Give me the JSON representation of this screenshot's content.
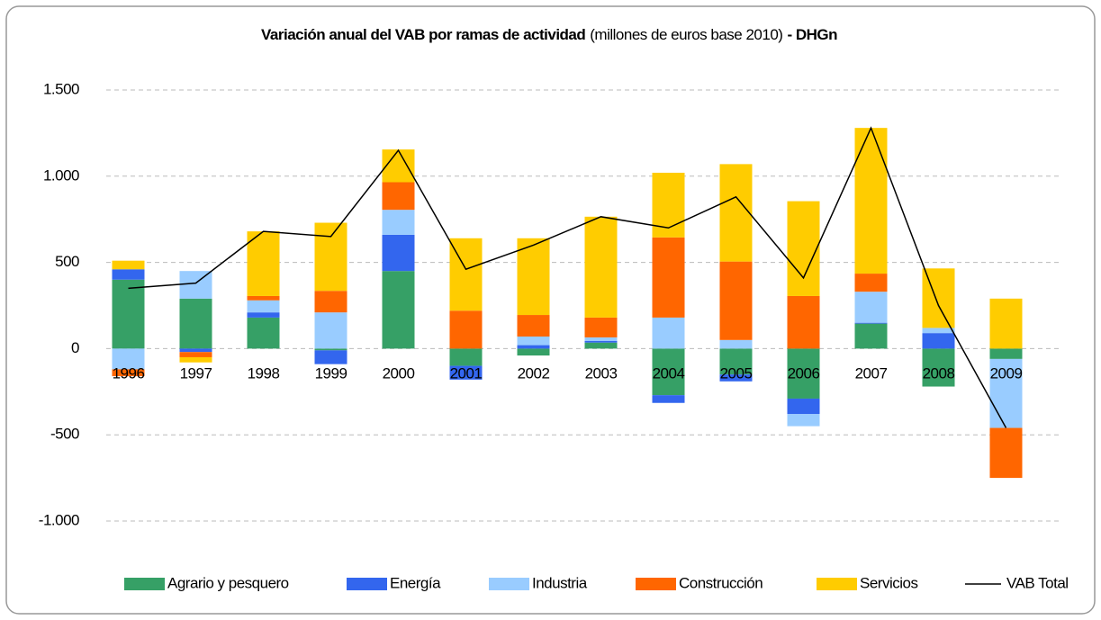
{
  "chart_data": {
    "type": "bar",
    "stacked": true,
    "title_parts": [
      "Variación anual del VAB por ramas de actividad",
      "(millones de euros base 2010)",
      "- DHGn"
    ],
    "categories": [
      "1996",
      "1997",
      "1998",
      "1999",
      "2000",
      "2001",
      "2002",
      "2003",
      "2004",
      "2005",
      "2006",
      "2007",
      "2008",
      "2009"
    ],
    "series": [
      {
        "name": "Agrario y pesquero",
        "color": "#36a066",
        "values": [
          400,
          290,
          180,
          -10,
          450,
          -100,
          -40,
          35,
          -270,
          -150,
          -290,
          145,
          -220,
          -60
        ]
      },
      {
        "name": "Energía",
        "color": "#3366ee",
        "values": [
          60,
          -20,
          30,
          -80,
          210,
          -80,
          20,
          10,
          -45,
          -40,
          -90,
          5,
          90,
          0
        ]
      },
      {
        "name": "Industria",
        "color": "#99ccff",
        "values": [
          -120,
          160,
          70,
          210,
          145,
          0,
          50,
          20,
          180,
          50,
          -70,
          180,
          30,
          -400
        ]
      },
      {
        "name": "Construcción",
        "color": "#ff6600",
        "values": [
          -40,
          -30,
          25,
          125,
          160,
          220,
          125,
          115,
          465,
          455,
          305,
          105,
          0,
          -290
        ]
      },
      {
        "name": "Servicios",
        "color": "#ffcc00",
        "values": [
          50,
          -30,
          375,
          395,
          190,
          420,
          445,
          585,
          375,
          565,
          550,
          845,
          345,
          290
        ]
      },
      {
        "name": "VAB Total",
        "color": "#000000",
        "type": "line",
        "values": [
          350,
          380,
          680,
          650,
          1150,
          460,
          600,
          765,
          700,
          880,
          410,
          1280,
          250,
          -460
        ]
      }
    ],
    "ylim": [
      -1000,
      1500
    ],
    "yticks": [
      {
        "value": -1000,
        "label": "-1.000"
      },
      -500,
      0,
      500,
      {
        "value": 1000,
        "label": "1.000"
      },
      {
        "value": 1500,
        "label": "1.500"
      }
    ],
    "grid": true,
    "legend": "bottom"
  }
}
